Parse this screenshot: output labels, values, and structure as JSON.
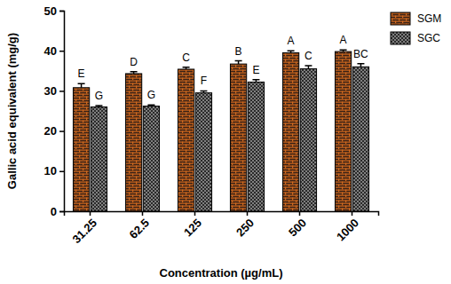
{
  "chart_data": {
    "type": "bar",
    "x_label": "Concentration (µg/mL)",
    "y_label": "Gallic acid equivalent (mg/g)",
    "categories": [
      "31.25",
      "62.5",
      "125",
      "250",
      "500",
      "1000"
    ],
    "series": [
      {
        "name": "SGM",
        "color": "#d2691e",
        "values": [
          30.8,
          34.3,
          35.4,
          36.7,
          39.5,
          39.8
        ],
        "errors": [
          1.0,
          0.5,
          0.5,
          0.8,
          0.5,
          0.4
        ],
        "annotations": [
          "E",
          "D",
          "C",
          "B",
          "A",
          "A"
        ]
      },
      {
        "name": "SGC",
        "color": "#808080",
        "values": [
          26.0,
          26.2,
          29.5,
          32.2,
          35.5,
          36.0
        ],
        "errors": [
          0.3,
          0.3,
          0.5,
          0.6,
          0.8,
          0.8
        ],
        "annotations": [
          "G",
          "G",
          "F",
          "E",
          "C",
          "BC"
        ]
      }
    ],
    "ylim": [
      0,
      50
    ],
    "yticks": [
      0,
      10,
      20,
      30,
      40,
      50
    ],
    "legend": "top-right",
    "grid": false
  }
}
